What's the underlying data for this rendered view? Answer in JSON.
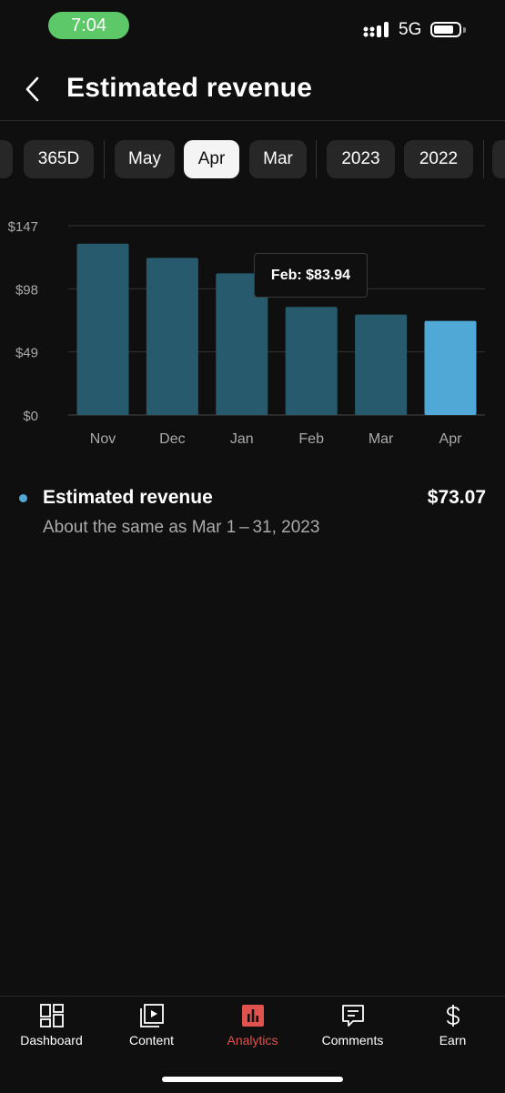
{
  "status_bar": {
    "time": "7:04",
    "network": "5G",
    "battery_percent": 80
  },
  "header": {
    "title": "Estimated revenue",
    "back_icon": "chevron-left-icon"
  },
  "period_chips": [
    {
      "label": "",
      "selected": false
    },
    {
      "label": "365D",
      "selected": false
    },
    {
      "label": "May",
      "selected": false
    },
    {
      "label": "Apr",
      "selected": true
    },
    {
      "label": "Mar",
      "selected": false
    },
    {
      "label": "2023",
      "selected": false
    },
    {
      "label": "2022",
      "selected": false
    },
    {
      "label": "",
      "selected": false
    }
  ],
  "chart_data": {
    "type": "bar",
    "categories": [
      "Nov",
      "Dec",
      "Jan",
      "Feb",
      "Mar",
      "Apr"
    ],
    "values": [
      133,
      122,
      110,
      83.94,
      78,
      73.07
    ],
    "ylim": [
      0,
      147
    ],
    "yticks": [
      "$0",
      "$49",
      "$98",
      "$147"
    ],
    "ytick_values": [
      0,
      49,
      98,
      147
    ],
    "grid": true,
    "highlight_index": 5,
    "bar_color": "#275a6c",
    "highlight_color": "#4fa8d6",
    "tooltip": "Feb: $83.94"
  },
  "metric": {
    "label": "Estimated revenue",
    "value": "$73.07",
    "comparison": "About the same as Mar 1 – 31, 2023",
    "dot_color": "#4fa8d6"
  },
  "bottom_nav": [
    {
      "label": "Dashboard",
      "icon": "dashboard-icon",
      "active": false
    },
    {
      "label": "Content",
      "icon": "content-icon",
      "active": false
    },
    {
      "label": "Analytics",
      "icon": "analytics-icon",
      "active": true
    },
    {
      "label": "Comments",
      "icon": "comments-icon",
      "active": false
    },
    {
      "label": "Earn",
      "icon": "dollar-icon",
      "active": false
    }
  ],
  "colors": {
    "accent": "#e0524e",
    "background": "#0f0f0f",
    "chip": "#272727"
  }
}
